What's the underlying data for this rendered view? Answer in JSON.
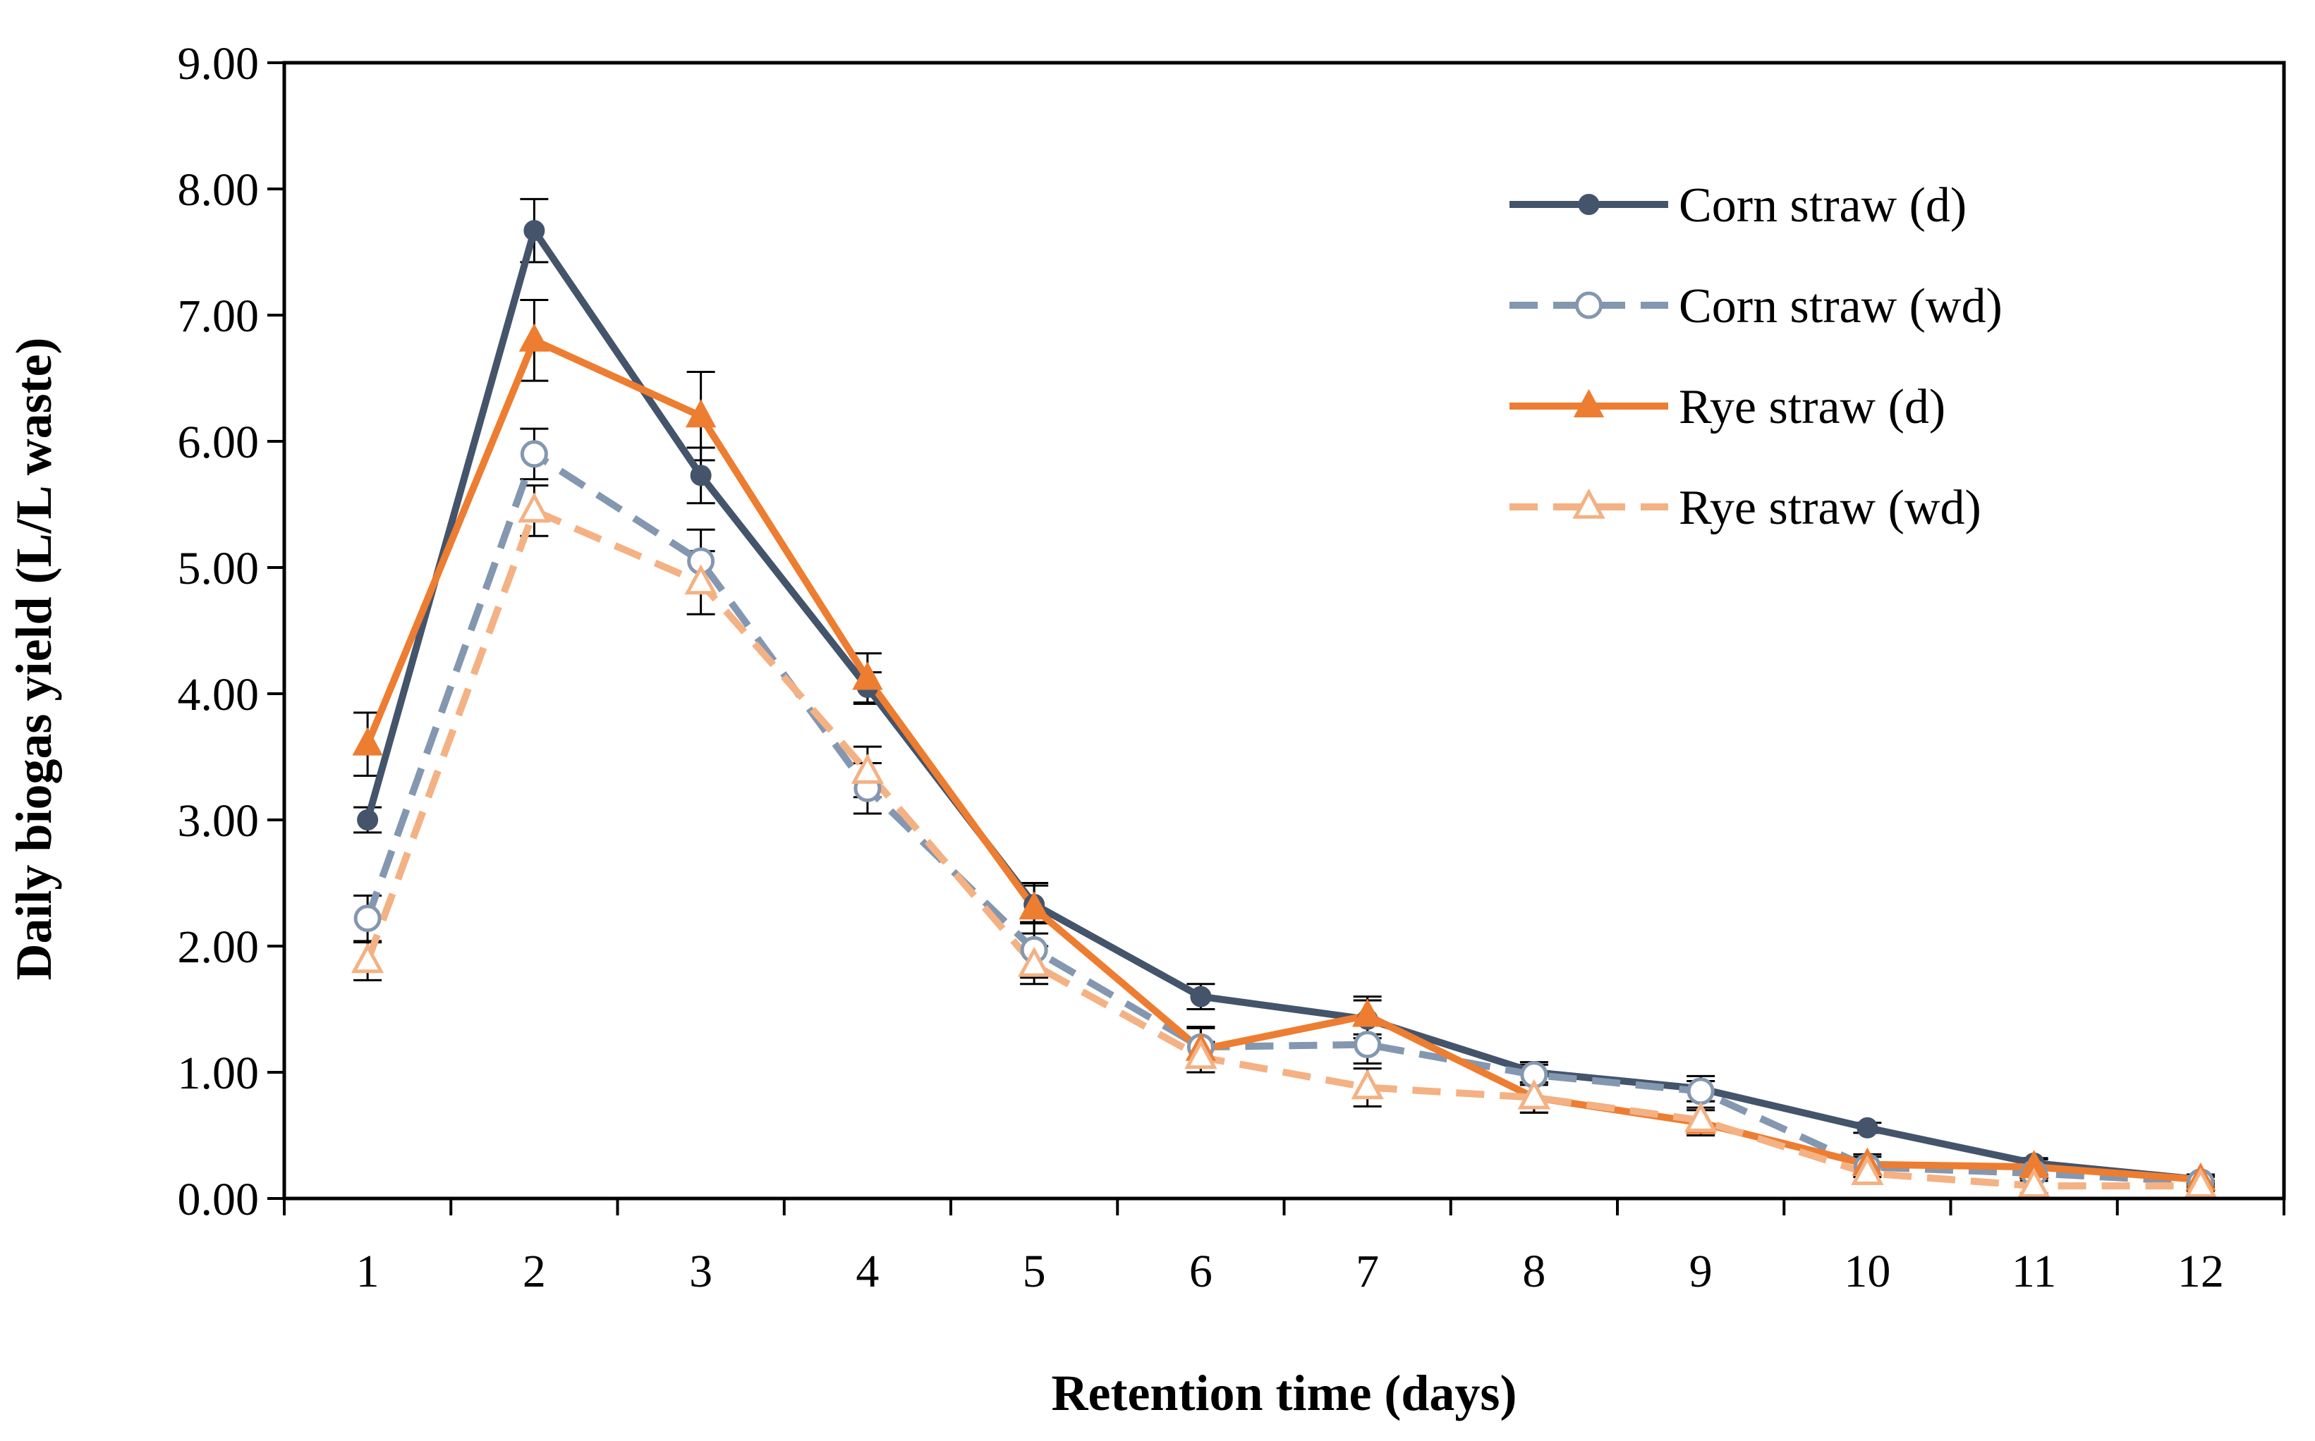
{
  "chart_data": {
    "type": "line",
    "title": "",
    "xlabel": "Retention time (days)",
    "ylabel": "Daily biogas yield (L/L waste)",
    "ylim": [
      0,
      9
    ],
    "yticks": [
      "0.00",
      "1.00",
      "2.00",
      "3.00",
      "4.00",
      "5.00",
      "6.00",
      "7.00",
      "8.00",
      "9.00"
    ],
    "categories": [
      "1",
      "2",
      "3",
      "4",
      "5",
      "6",
      "7",
      "8",
      "9",
      "10",
      "11",
      "12"
    ],
    "grid": false,
    "legend_position": "top-right",
    "series": [
      {
        "name": "Corn straw (d)",
        "color": "#44546a",
        "dashed": false,
        "marker": "circle-filled",
        "values": [
          3.0,
          7.67,
          5.73,
          4.05,
          2.33,
          1.6,
          1.42,
          1.0,
          0.87,
          0.56,
          0.28,
          0.15
        ],
        "errors": [
          0.1,
          0.25,
          0.22,
          0.12,
          0.15,
          0.1,
          0.15,
          0.08,
          0.1,
          0.04,
          0.04,
          0.03
        ]
      },
      {
        "name": "Corn straw (wd)",
        "color": "#8497b0",
        "dashed": true,
        "marker": "circle-open",
        "values": [
          2.22,
          5.9,
          5.05,
          3.25,
          1.97,
          1.2,
          1.22,
          0.98,
          0.85,
          0.25,
          0.2,
          0.13
        ],
        "errors": [
          0.18,
          0.2,
          0.25,
          0.2,
          0.22,
          0.15,
          0.15,
          0.08,
          0.08,
          0.08,
          0.06,
          0.04
        ]
      },
      {
        "name": "Rye straw (d)",
        "color": "#ed7d31",
        "dashed": false,
        "marker": "triangle-filled",
        "values": [
          3.6,
          6.8,
          6.2,
          4.12,
          2.3,
          1.18,
          1.45,
          0.8,
          0.6,
          0.27,
          0.25,
          0.15
        ],
        "errors": [
          0.25,
          0.32,
          0.35,
          0.2,
          0.2,
          0.18,
          0.15,
          0.12,
          0.1,
          0.08,
          0.06,
          0.04
        ]
      },
      {
        "name": "Rye straw (wd)",
        "color": "#f4b183",
        "dashed": true,
        "marker": "triangle-open",
        "values": [
          1.88,
          5.45,
          4.88,
          3.38,
          1.85,
          1.12,
          0.88,
          0.8,
          0.62,
          0.2,
          0.1,
          0.1
        ],
        "errors": [
          0.15,
          0.2,
          0.25,
          0.2,
          0.15,
          0.12,
          0.15,
          0.12,
          0.1,
          0.08,
          0.06,
          0.04
        ]
      }
    ]
  }
}
